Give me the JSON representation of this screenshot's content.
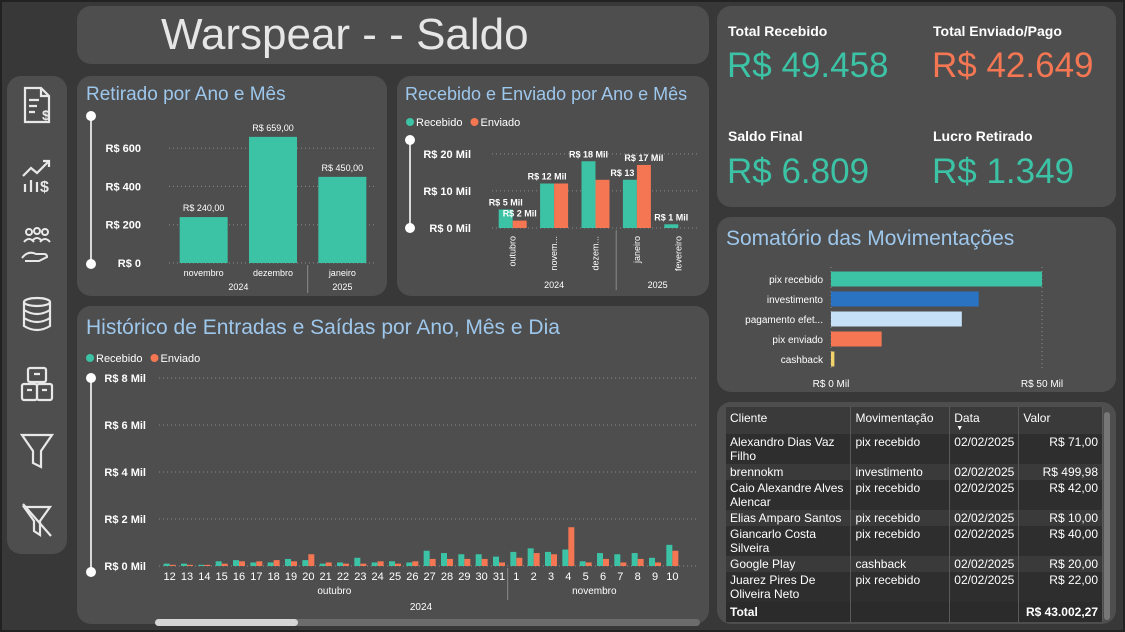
{
  "header": {
    "title": "Warspear - - Saldo"
  },
  "nav": {
    "icons": [
      "invoice-dollar-icon",
      "chart-growth-dollar-icon",
      "people-hand-icon",
      "coins-stack-icon",
      "boxes-icon",
      "filter-icon",
      "clear-filter-icon"
    ]
  },
  "kpis": {
    "total_recebido": {
      "label": "Total Recebido",
      "value": "R$ 49.458",
      "color": "#3cc3a6"
    },
    "total_enviado": {
      "label": "Total Enviado/Pago",
      "value": "R$ 42.649",
      "color": "#f47653"
    },
    "saldo_final": {
      "label": "Saldo Final",
      "value": "R$ 6.809",
      "color": "#3cc3a6"
    },
    "lucro_retirado": {
      "label": "Lucro Retirado",
      "value": "R$ 1.349",
      "color": "#3cc3a6"
    }
  },
  "colors": {
    "recebido": "#3cc3a6",
    "enviado": "#f47653",
    "panel": "#4e4e4e",
    "title_blue": "#9ec7ec"
  },
  "chart_data": [
    {
      "id": "retirado",
      "type": "bar",
      "title": "Retirado por Ano e Mês",
      "categories": [
        "novembro",
        "dezembro",
        "janeiro"
      ],
      "groups": [
        {
          "label": "2024",
          "count": 2
        },
        {
          "label": "2025",
          "count": 1
        }
      ],
      "values": [
        240,
        659,
        450
      ],
      "data_labels": [
        "R$ 240,00",
        "R$ 659,00",
        "R$ 450,00"
      ],
      "ylim": [
        0,
        700
      ],
      "yticks": [
        {
          "v": 0,
          "label": "R$ 0"
        },
        {
          "v": 200,
          "label": "R$ 200"
        },
        {
          "v": 400,
          "label": "R$ 400"
        },
        {
          "v": 600,
          "label": "R$ 600"
        }
      ],
      "grid": true
    },
    {
      "id": "recebido_enviado",
      "type": "bar",
      "title": "Recebido e Enviado por Ano e Mês",
      "legend_position": "top-left",
      "categories": [
        "outubro",
        "novem...",
        "dezem...",
        "janeiro",
        "fevereiro"
      ],
      "groups": [
        {
          "label": "2024",
          "count": 3
        },
        {
          "label": "2025",
          "count": 2
        }
      ],
      "series": [
        {
          "name": "Recebido",
          "values": [
            5,
            12,
            18,
            13,
            1
          ],
          "data_labels": [
            "R$ 5 Mil",
            "R$ 12 Mil",
            "R$ 18 Mil",
            "R$ 13 Mil",
            "R$ 1 Mil"
          ]
        },
        {
          "name": "Enviado",
          "values": [
            2,
            12,
            13,
            17,
            0
          ],
          "data_labels": [
            "R$ 2 Mil",
            "",
            "",
            "R$ 17 Mil",
            ""
          ]
        }
      ],
      "ylim": [
        0,
        24
      ],
      "yticks": [
        {
          "v": 0,
          "label": "R$ 0 Mil"
        },
        {
          "v": 10,
          "label": "R$ 10 Mil"
        },
        {
          "v": 20,
          "label": "R$ 20 Mil"
        }
      ],
      "grid": true
    },
    {
      "id": "historico",
      "type": "bar",
      "title": "Histórico de Entradas e Saídas por Ano, Mês e Dia",
      "legend_position": "top-left",
      "categories": [
        "12",
        "13",
        "14",
        "15",
        "16",
        "17",
        "18",
        "19",
        "20",
        "21",
        "22",
        "23",
        "24",
        "25",
        "26",
        "27",
        "28",
        "29",
        "30",
        "31",
        "1",
        "2",
        "3",
        "4",
        "5",
        "6",
        "7",
        "8",
        "9",
        "10"
      ],
      "month_groups": [
        {
          "label": "outubro",
          "count": 20
        },
        {
          "label": "novembro",
          "count": 10
        }
      ],
      "year": "2024",
      "series": [
        {
          "name": "Recebido",
          "values": [
            0.1,
            0.1,
            0.05,
            0.2,
            0.25,
            0.15,
            0.15,
            0.3,
            0.25,
            0.1,
            0.15,
            0.35,
            0.15,
            0.2,
            0.15,
            0.65,
            0.55,
            0.5,
            0.5,
            0.4,
            0.6,
            0.75,
            0.6,
            0.7,
            0.2,
            0.55,
            0.5,
            0.55,
            0.35,
            0.9
          ]
        },
        {
          "name": "Enviado",
          "values": [
            0.05,
            0.05,
            0.05,
            0.1,
            0.2,
            0.2,
            0.25,
            0.2,
            0.5,
            0.15,
            0.1,
            0.1,
            0.2,
            0.1,
            0.2,
            0.3,
            0.3,
            0.3,
            0.3,
            0.15,
            0.35,
            0.55,
            0.5,
            1.65,
            0.15,
            0.3,
            0.15,
            0.3,
            0.15,
            0.65
          ]
        }
      ],
      "ylim": [
        0,
        8
      ],
      "yticks": [
        {
          "v": 0,
          "label": "R$ 0 Mil"
        },
        {
          "v": 2,
          "label": "R$ 2 Mil"
        },
        {
          "v": 4,
          "label": "R$ 4 Mil"
        },
        {
          "v": 6,
          "label": "R$ 6 Mil"
        },
        {
          "v": 8,
          "label": "R$ 8 Mil"
        }
      ],
      "grid": true
    },
    {
      "id": "somatorio",
      "type": "bar",
      "orientation": "horizontal",
      "title": "Somatório das Movimentações",
      "categories": [
        "pix recebido",
        "investimento",
        "pagamento efet...",
        "pix enviado",
        "cashback"
      ],
      "values": [
        50,
        35,
        31,
        12,
        0.8
      ],
      "colors": [
        "#3cc3a6",
        "#2a73c3",
        "#c6e0f7",
        "#f47653",
        "#f2d36b"
      ],
      "xlim": [
        0,
        50
      ],
      "xticks": [
        {
          "v": 0,
          "label": "R$ 0 Mil"
        },
        {
          "v": 50,
          "label": "R$ 50 Mil"
        }
      ],
      "grid": true
    }
  ],
  "table": {
    "columns": [
      "Cliente",
      "Movimentação",
      "Data",
      "Valor"
    ],
    "sorted_column": "Data",
    "rows": [
      [
        "Alexandro Dias Vaz Filho",
        "pix recebido",
        "02/02/2025",
        "R$ 71,00"
      ],
      [
        "brennokm",
        "investimento",
        "02/02/2025",
        "R$ 499,98"
      ],
      [
        "Caio Alexandre Alves Alencar",
        "pix recebido",
        "02/02/2025",
        "R$ 42,00"
      ],
      [
        "Elias Amparo Santos",
        "pix recebido",
        "02/02/2025",
        "R$ 10,00"
      ],
      [
        "Giancarlo Costa Silveira",
        "pix recebido",
        "02/02/2025",
        "R$ 40,00"
      ],
      [
        "Google Play",
        "cashback",
        "02/02/2025",
        "R$ 20,00"
      ],
      [
        "Juarez Pires De Oliveira Neto",
        "pix recebido",
        "02/02/2025",
        "R$ 22,00"
      ]
    ],
    "total_label": "Total",
    "total_value": "R$ 43.002,27"
  }
}
